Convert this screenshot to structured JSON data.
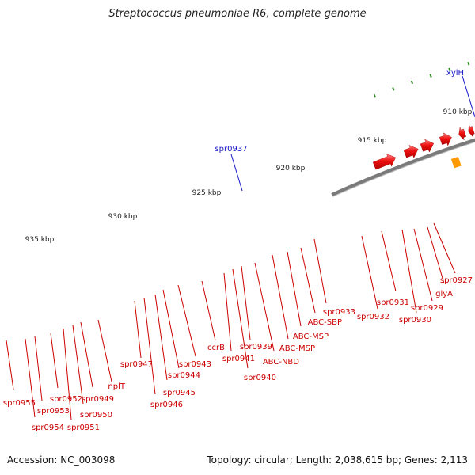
{
  "title": "Streptococcus pneumoniae R6, complete genome",
  "footer": {
    "accession": "Accession: NC_003098",
    "summary": "Topology: circular; Length: 2,038,615 bp; Genes: 2,113"
  },
  "ruler_labels": [
    "910 kbp",
    "915 kbp",
    "920 kbp",
    "925 kbp",
    "930 kbp",
    "935 kbp"
  ],
  "blue_labels": [
    "xylH",
    "spr0937"
  ],
  "gene_labels": [
    "spr0927",
    "glyA",
    "spr0929",
    "spr0930",
    "spr0931",
    "spr0932",
    "spr0933",
    "ABC-SBP",
    "ABC-MSP",
    "ABC-MSP",
    "ABC-NBD",
    "spr0939",
    "spr0940",
    "spr0941",
    "ccrB",
    "spr0943",
    "spr0944",
    "spr0945",
    "spr0946",
    "spr0947",
    "nplT",
    "spr0949",
    "spr0950",
    "spr0951",
    "spr0952",
    "spr0953",
    "spr0954",
    "spr0955"
  ],
  "colors": {
    "gene": "#e8000b",
    "label_red": "#cc0000",
    "label_blue": "#1515c8",
    "ruler_tick": "#2e8b22",
    "backbone": "#7a7a7a"
  }
}
